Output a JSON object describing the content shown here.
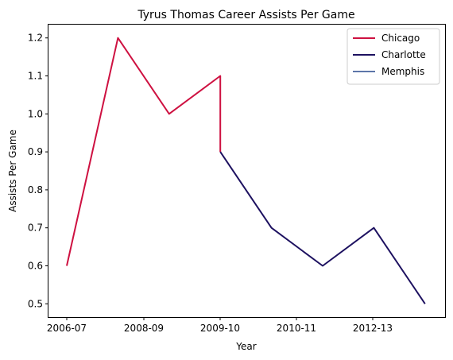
{
  "chart_data": {
    "type": "line",
    "title": "Tyrus Thomas Career Assists Per Game",
    "xlabel": "Year",
    "ylabel": "Assists Per Game",
    "x_ticks": [
      "2006-07",
      "2008-09",
      "2009-10",
      "2010-11",
      "2012-13"
    ],
    "x_seasons": [
      "2006-07",
      "2007-08",
      "2008-09",
      "2009-10",
      "2010-11",
      "2011-12",
      "2012-13",
      "2013-14"
    ],
    "ylim": [
      0.465,
      1.235
    ],
    "yticks": [
      0.5,
      0.6,
      0.7,
      0.8,
      0.9,
      1.0,
      1.1,
      1.2
    ],
    "ytick_labels": [
      "0.5",
      "0.6",
      "0.7",
      "0.8",
      "0.9",
      "1.0",
      "1.1",
      "1.2"
    ],
    "grid": false,
    "legend_position": "top-right",
    "series": [
      {
        "name": "Chicago",
        "color": "#CE1141",
        "points": [
          {
            "season": "2006-07",
            "value": 0.6
          },
          {
            "season": "2007-08",
            "value": 1.2
          },
          {
            "season": "2008-09",
            "value": 1.0
          },
          {
            "season": "2009-10",
            "value": 1.1
          },
          {
            "season": "2009-10",
            "value": 0.9
          }
        ]
      },
      {
        "name": "Charlotte",
        "color": "#1D1160",
        "points": [
          {
            "season": "2009-10",
            "value": 0.9
          },
          {
            "season": "2010-11",
            "value": 0.7
          },
          {
            "season": "2011-12",
            "value": 0.6
          },
          {
            "season": "2012-13",
            "value": 0.7
          },
          {
            "season": "2013-14",
            "value": 0.5
          }
        ]
      },
      {
        "name": "Memphis",
        "color": "#5D76A9",
        "points": []
      }
    ]
  }
}
